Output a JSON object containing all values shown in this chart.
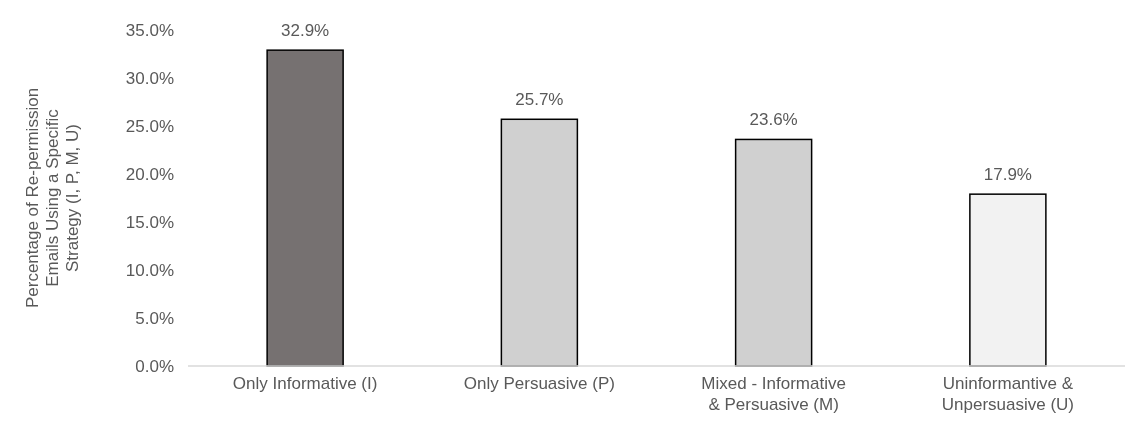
{
  "chart_data": {
    "type": "bar",
    "ylabel": "Percentage of  Re-permission Emails Using a Specific Strategy (I, P, M, U)",
    "categories": [
      "Only Informative (I)",
      "Only Persuasive (P)",
      "Mixed -  Informative & Persuasive (M)",
      "Uninformantive & Unpersuasive (U)"
    ],
    "values": [
      32.9,
      25.7,
      23.6,
      17.9
    ],
    "colors": [
      "#767171",
      "#d0d0d0",
      "#d0d0d0",
      "#f2f2f2"
    ],
    "value_labels": [
      "32.9%",
      "25.7%",
      "23.6%",
      "17.9%"
    ],
    "ylim": [
      0,
      35
    ],
    "yticks": [
      {
        "value": 0,
        "label": "0.0%"
      },
      {
        "value": 5,
        "label": "5.0%"
      },
      {
        "value": 10,
        "label": "10.0%"
      },
      {
        "value": 15,
        "label": "15.0%"
      },
      {
        "value": 20,
        "label": "20.0%"
      },
      {
        "value": 25,
        "label": "25.0%"
      },
      {
        "value": 30,
        "label": "30.0%"
      },
      {
        "value": 35,
        "label": "35.0%"
      }
    ],
    "grid": false
  }
}
